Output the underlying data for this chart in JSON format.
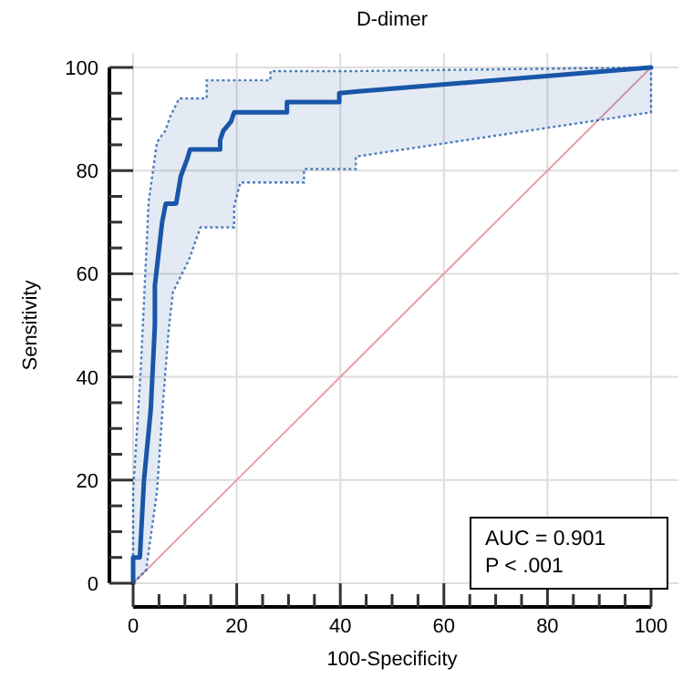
{
  "chart_data": {
    "type": "line",
    "title": "D-dimer",
    "xlabel": "100-Specificity",
    "ylabel": "Sensitivity",
    "x": [
      0,
      0,
      1.3,
      1.5,
      2.1,
      2.5,
      3,
      3.4,
      4.2,
      4.2,
      4.6,
      5.6,
      5.7,
      6.2,
      6.3,
      6.9,
      7.2,
      7.7,
      8.3,
      8.9,
      9.2,
      10.5,
      10.7,
      11,
      13,
      14.2,
      14.2,
      16.8,
      16.8,
      17.4,
      18.9,
      19.5,
      19.5,
      20.7,
      26.5,
      26.5,
      29.7,
      29.7,
      33,
      33,
      39.8,
      39.8,
      43,
      43,
      100
    ],
    "series": [
      {
        "color": "#1a56a8",
        "values": [
          0,
          5,
          5,
          8.8,
          20,
          24.2,
          29.4,
          33.6,
          50,
          57.7,
          61.2,
          70,
          70.5,
          73.1,
          73.6,
          73.6,
          73.6,
          73.6,
          73.6,
          77.1,
          78.9,
          82.4,
          83.1,
          84.1,
          84.1,
          84.1,
          84.1,
          84.1,
          85.9,
          87.7,
          89.5,
          91.3,
          91.3,
          91.3,
          91.3,
          91.3,
          91.3,
          93.3,
          93.3,
          93.3,
          93.3,
          95,
          95.3,
          95.3,
          100
        ],
        "lower": [
          0,
          0,
          1.3,
          1.5,
          2.1,
          2.5,
          6.1,
          9,
          14.8,
          14.8,
          17.7,
          32.5,
          34,
          40.5,
          41.8,
          49.5,
          52.1,
          56.5,
          57.7,
          58.9,
          59.5,
          62.1,
          62.5,
          63.3,
          69,
          69,
          69,
          69,
          69,
          69,
          69,
          69,
          73,
          77.7,
          77.7,
          77.7,
          77.7,
          77.7,
          77.7,
          80.3,
          80.3,
          80.3,
          80.3,
          82.7,
          91.3
        ],
        "upper": [
          0,
          17.7,
          38.8,
          42,
          54.8,
          63.3,
          74,
          76.9,
          82.6,
          82.6,
          85.5,
          86.9,
          87,
          87.7,
          88,
          89.7,
          90.6,
          91.6,
          92.8,
          94,
          94,
          94,
          94,
          94,
          94,
          94,
          97.5,
          97.5,
          97.5,
          97.5,
          97.5,
          97.5,
          97.5,
          97.5,
          97.5,
          99.3,
          99.3,
          99.3,
          99.3,
          99.3,
          99.3,
          99.3,
          99.3,
          99.3,
          100
        ]
      },
      {
        "type": "line",
        "x": [
          0,
          100
        ],
        "values": [
          0,
          100
        ],
        "color": "#e8a0a8"
      }
    ],
    "xlim": [
      0,
      100
    ],
    "ylim": [
      0,
      100
    ],
    "xticks": [
      0,
      {
        "value": 5,
        "label": null
      },
      {
        "value": 10,
        "label": null
      },
      {
        "value": 15,
        "label": null
      },
      20,
      {
        "value": 25,
        "label": null
      },
      {
        "value": 30,
        "label": null
      },
      {
        "value": 35,
        "label": null
      },
      40,
      {
        "value": 45,
        "label": null
      },
      {
        "value": 50,
        "label": null
      },
      {
        "value": 55,
        "label": null
      },
      60,
      {
        "value": 65,
        "label": null
      },
      {
        "value": 70,
        "label": null
      },
      {
        "value": 75,
        "label": null
      },
      80,
      {
        "value": 85,
        "label": null
      },
      {
        "value": 90,
        "label": null
      },
      {
        "value": 95,
        "label": null
      },
      100
    ],
    "yticks": [
      0,
      {
        "value": 5,
        "label": null
      },
      {
        "value": 10,
        "label": null
      },
      {
        "value": 15,
        "label": null
      },
      20,
      {
        "value": 25,
        "label": null
      },
      {
        "value": 30,
        "label": null
      },
      {
        "value": 35,
        "label": null
      },
      40,
      {
        "value": 45,
        "label": null
      },
      {
        "value": 50,
        "label": null
      },
      {
        "value": 55,
        "label": null
      },
      60,
      {
        "value": 65,
        "label": null
      },
      {
        "value": 70,
        "label": null
      },
      {
        "value": 75,
        "label": null
      },
      80,
      {
        "value": 85,
        "label": null
      },
      {
        "value": 90,
        "label": null
      },
      {
        "value": 95,
        "label": null
      },
      100
    ],
    "grid": true,
    "annotations": [
      "AUC = 0.901",
      "P < .001"
    ]
  }
}
